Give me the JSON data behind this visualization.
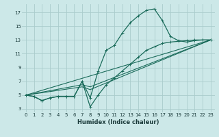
{
  "xlabel": "Humidex (Indice chaleur)",
  "xlim": [
    -0.5,
    23.5
  ],
  "ylim": [
    2.5,
    18.2
  ],
  "xticks": [
    0,
    1,
    2,
    3,
    4,
    5,
    6,
    7,
    8,
    9,
    10,
    11,
    12,
    13,
    14,
    15,
    16,
    17,
    18,
    19,
    20,
    21,
    22,
    23
  ],
  "yticks": [
    3,
    5,
    7,
    9,
    11,
    13,
    15,
    17
  ],
  "bg_color": "#cce8e8",
  "grid_color": "#aacccc",
  "line_color": "#1a6b5a",
  "curve1_x": [
    0,
    1,
    2,
    3,
    4,
    5,
    6,
    7,
    8,
    9,
    10,
    11,
    12,
    13,
    14,
    15,
    16,
    17,
    18,
    19,
    20,
    21,
    22,
    23
  ],
  "curve1_y": [
    5.0,
    4.8,
    4.2,
    4.6,
    4.8,
    4.8,
    4.8,
    7.0,
    4.6,
    8.5,
    11.5,
    12.2,
    14.0,
    15.5,
    16.5,
    17.3,
    17.5,
    15.8,
    13.5,
    12.9,
    12.7,
    12.9,
    13.0,
    13.0
  ],
  "curve2_x": [
    0,
    1,
    2,
    3,
    4,
    5,
    6,
    7,
    8,
    9,
    10,
    11,
    12,
    13,
    14,
    15,
    16,
    17,
    18,
    19,
    20,
    21,
    22,
    23
  ],
  "curve2_y": [
    5.0,
    4.8,
    4.2,
    4.6,
    4.8,
    4.8,
    4.8,
    7.0,
    3.3,
    5.0,
    6.5,
    7.5,
    8.5,
    9.5,
    10.5,
    11.5,
    12.0,
    12.5,
    12.7,
    12.8,
    12.9,
    13.0,
    13.0,
    13.0
  ],
  "curve3_x": [
    0,
    23
  ],
  "curve3_y": [
    5.0,
    13.0
  ],
  "curve4_x": [
    0,
    23
  ],
  "curve4_y": [
    5.0,
    13.0
  ],
  "line1_x": [
    0,
    7,
    8,
    23
  ],
  "line1_y": [
    5.0,
    6.5,
    6.2,
    13.0
  ],
  "line2_x": [
    0,
    7,
    8,
    23
  ],
  "line2_y": [
    5.0,
    6.2,
    5.8,
    13.0
  ],
  "line3_x": [
    0,
    23
  ],
  "line3_y": [
    5.0,
    13.0
  ]
}
